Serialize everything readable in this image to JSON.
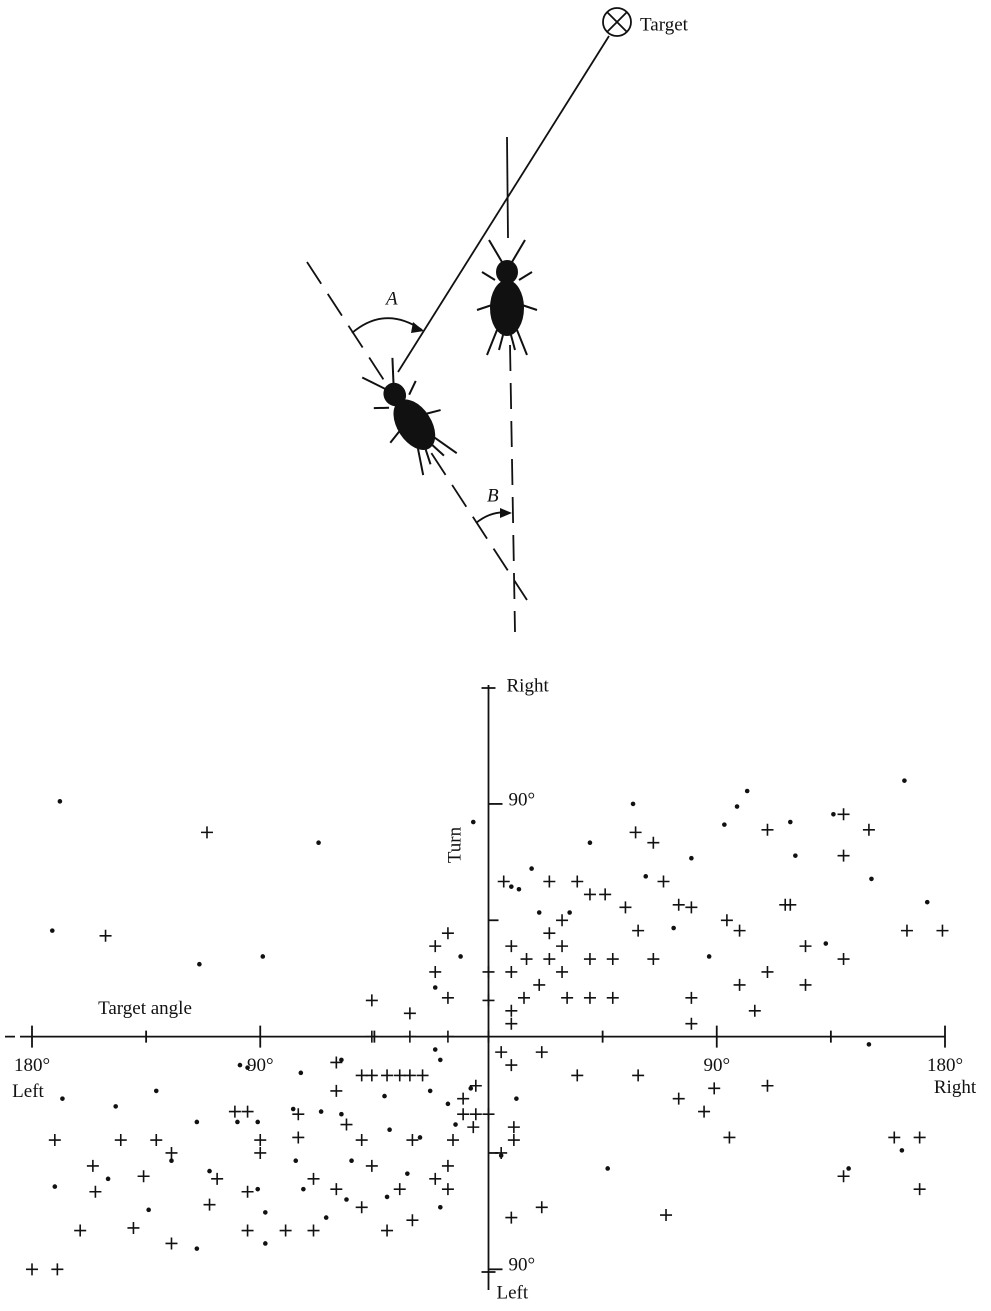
{
  "diagram": {
    "target_label": "Target",
    "angle_a": "A",
    "angle_b": "B"
  },
  "chart_data": {
    "type": "scatter",
    "x_label": "Target angle",
    "y_label": "Turn",
    "x_end_labels": [
      "Left",
      "Right"
    ],
    "y_end_labels": [
      "Left",
      "Right"
    ],
    "xlim": [
      -180,
      180
    ],
    "ylim": [
      -98,
      136
    ],
    "xticks": [
      {
        "value": -180,
        "label": "180°"
      },
      {
        "value": -90,
        "label": "90°"
      },
      {
        "value": 90,
        "label": "90°"
      },
      {
        "value": 180,
        "label": "180°"
      }
    ],
    "xminorticks": [
      -135,
      -45,
      0,
      45,
      135
    ],
    "yticks": [
      {
        "value": -90,
        "label": "90°"
      },
      {
        "value": 90,
        "label": "90°"
      }
    ],
    "yminorticks": [
      -45,
      45
    ],
    "color": "#111111",
    "series": [
      {
        "marker": "cross",
        "x": [
          -111,
          -151,
          -46,
          -21,
          -16,
          -21,
          -16,
          -31,
          6,
          24,
          35,
          40,
          46,
          9,
          15,
          24,
          29,
          29,
          24,
          29,
          40,
          49,
          54,
          59,
          65,
          49,
          40,
          31,
          20,
          14,
          9,
          9,
          9,
          0,
          0,
          58,
          65,
          69,
          75,
          80,
          94,
          99,
          110,
          117,
          119,
          140,
          150,
          140,
          125,
          110,
          99,
          105,
          125,
          140,
          165,
          179,
          80,
          80,
          59,
          35,
          21,
          9,
          5,
          89,
          75,
          85,
          95,
          110,
          160,
          170,
          170,
          140,
          70,
          10,
          10,
          5,
          9,
          21,
          -40,
          -46,
          -35,
          -31,
          -50,
          -26,
          -60,
          -60,
          -75,
          -75,
          -56,
          -50,
          -46,
          -30,
          -14,
          -16,
          -21,
          -16,
          -35,
          -30,
          -40,
          -50,
          -60,
          -69,
          -69,
          -80,
          -95,
          -95,
          -90,
          -90,
          -100,
          -95,
          -107,
          -110,
          -136,
          -125,
          -145,
          -131,
          -171,
          -156,
          -155,
          -140,
          -161,
          -125,
          -180,
          -170,
          -10,
          -5,
          0,
          -6,
          -10,
          -5,
          -46,
          -31,
          -16
        ],
        "y": [
          79,
          39,
          14,
          35,
          40,
          25,
          15,
          9,
          60,
          60,
          60,
          55,
          55,
          35,
          30,
          40,
          45,
          35,
          30,
          25,
          30,
          30,
          50,
          41,
          30,
          15,
          15,
          15,
          20,
          15,
          25,
          10,
          5,
          25,
          14,
          79,
          75,
          60,
          51,
          50,
          45,
          41,
          80,
          51,
          51,
          86,
          80,
          70,
          35,
          25,
          20,
          10,
          20,
          30,
          41,
          41,
          15,
          5,
          -15,
          -15,
          -6,
          -11,
          -6,
          -20,
          -24,
          -29,
          -39,
          -19,
          -39,
          -39,
          -59,
          -54,
          -69,
          -35,
          -40,
          -45,
          -70,
          -66,
          -15,
          -15,
          -15,
          -15,
          -15,
          -15,
          -10,
          -21,
          -30,
          -39,
          -34,
          -40,
          -50,
          -40,
          -40,
          -50,
          -55,
          -59,
          -59,
          -71,
          -75,
          -66,
          -59,
          -55,
          -75,
          -75,
          -75,
          -60,
          -40,
          -45,
          -29,
          -29,
          -55,
          -65,
          -54,
          -45,
          -40,
          -40,
          -40,
          -50,
          -60,
          -74,
          -75,
          -80,
          -90,
          -90,
          -30,
          -30,
          -30,
          -35,
          -24,
          -19,
          0,
          0,
          0
        ]
      },
      {
        "marker": "dot",
        "x": [
          -169,
          -172,
          -114,
          -89,
          -67,
          -6,
          57,
          102,
          98,
          93,
          119,
          121,
          136,
          164,
          151,
          173,
          80,
          62,
          40,
          17,
          9,
          12,
          20,
          32,
          -11,
          -21,
          73,
          87,
          133,
          150,
          47,
          142,
          163,
          -171,
          -150,
          -134,
          -147,
          -131,
          -125,
          -115,
          -110,
          -98,
          -95,
          -91,
          -99,
          -91,
          -88,
          -88,
          -115,
          -74,
          -77,
          -76,
          -73,
          -64,
          -58,
          -58,
          -54,
          -56,
          -66,
          -41,
          -39,
          -32,
          -27,
          -23,
          -19,
          -16,
          -13,
          -7,
          11,
          5,
          -21,
          -168,
          -19,
          -40
        ],
        "y": [
          91,
          41,
          28,
          31,
          75,
          83,
          90,
          95,
          89,
          82,
          83,
          70,
          86,
          99,
          61,
          52,
          69,
          62,
          75,
          65,
          58,
          57,
          48,
          48,
          31,
          19,
          42,
          31,
          36,
          -3,
          -51,
          -51,
          -44,
          -58,
          -55,
          -67,
          -27,
          -21,
          -48,
          -33,
          -52,
          -11,
          -12,
          -33,
          -33,
          -59,
          -68,
          -80,
          -82,
          -14,
          -28,
          -48,
          -59,
          -70,
          -9,
          -30,
          -48,
          -63,
          -29,
          -23,
          -36,
          -53,
          -39,
          -21,
          -9,
          -26,
          -34,
          -20,
          -24,
          -46,
          -5,
          -24,
          -66,
          -62
        ]
      }
    ]
  }
}
